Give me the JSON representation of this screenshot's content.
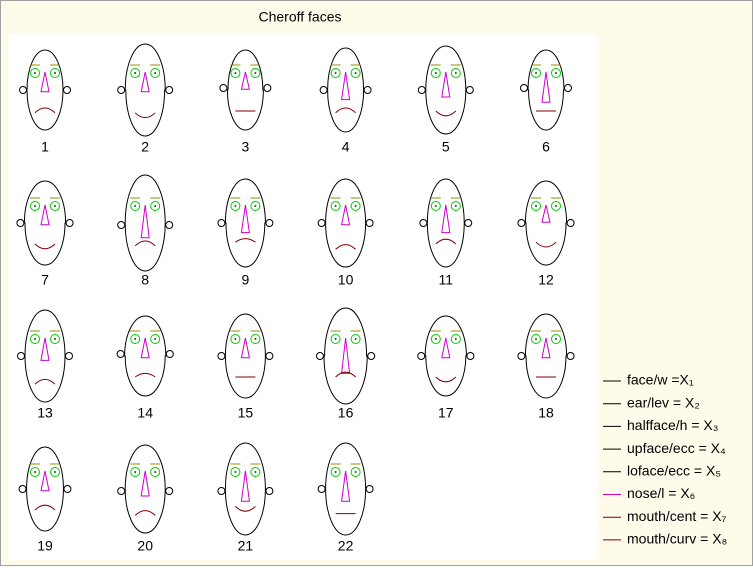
{
  "chart_data": {
    "type": "chernoff",
    "title": "Cheroff faces",
    "categories": [
      "1",
      "2",
      "3",
      "4",
      "5",
      "6",
      "7",
      "8",
      "9",
      "10",
      "11",
      "12",
      "13",
      "14",
      "15",
      "16",
      "17",
      "18",
      "19",
      "20",
      "21",
      "22"
    ],
    "series": [
      {
        "name": "face/w =X₁",
        "color": "#000000",
        "values": [
          0.4,
          0.6,
          0.4,
          0.4,
          0.6,
          0.4,
          0.6,
          0.6,
          0.6,
          0.6,
          0.5,
          0.6,
          0.6,
          0.6,
          0.6,
          0.7,
          0.6,
          0.6,
          0.5,
          0.6,
          0.6,
          0.6
        ]
      },
      {
        "name": "ear/lev = X₂",
        "color": "#000000",
        "values": [
          0.5,
          0.5,
          0.4,
          0.5,
          0.5,
          0.4,
          0.5,
          0.6,
          0.5,
          0.5,
          0.5,
          0.5,
          0.5,
          0.4,
          0.5,
          0.5,
          0.5,
          0.5,
          0.5,
          0.6,
          0.6,
          0.5
        ]
      },
      {
        "name": "halfface/h = X₃",
        "color": "#000000",
        "values": [
          0.4,
          0.7,
          0.4,
          0.5,
          0.6,
          0.4,
          0.5,
          0.8,
          0.6,
          0.6,
          0.6,
          0.5,
          0.7,
          0.4,
          0.5,
          0.8,
          0.4,
          0.5,
          0.5,
          0.6,
          0.7,
          0.7
        ]
      },
      {
        "name": "upface/ecc = X₄",
        "color": "#000000",
        "values": [
          0.5,
          0.5,
          0.4,
          0.5,
          0.5,
          0.5,
          0.6,
          0.5,
          0.5,
          0.5,
          0.4,
          0.6,
          0.5,
          0.6,
          0.5,
          0.5,
          0.6,
          0.6,
          0.4,
          0.5,
          0.5,
          0.5
        ]
      },
      {
        "name": "loface/ecc = X₅",
        "color": "#000000",
        "values": [
          0.5,
          0.4,
          0.5,
          0.5,
          0.5,
          0.4,
          0.5,
          0.5,
          0.4,
          0.5,
          0.4,
          0.5,
          0.5,
          0.5,
          0.5,
          0.6,
          0.5,
          0.5,
          0.4,
          0.5,
          0.5,
          0.5
        ]
      },
      {
        "name": "nose/l = X₆",
        "color": "#cc00cc",
        "values": [
          0.3,
          0.3,
          0.2,
          0.6,
          0.5,
          0.7,
          0.3,
          0.8,
          0.6,
          0.3,
          0.6,
          0.2,
          0.4,
          0.3,
          0.3,
          0.9,
          0.3,
          0.3,
          0.3,
          0.5,
          0.7,
          0.7
        ]
      },
      {
        "name": "mouth/cent = X₇",
        "color": "#800000",
        "values": [
          0.6,
          0.6,
          0.5,
          0.6,
          0.5,
          0.5,
          0.5,
          0.6,
          0.4,
          0.8,
          0.5,
          0.4,
          0.9,
          0.5,
          0.5,
          0.5,
          0.5,
          0.5,
          0.5,
          0.8,
          0.3,
          0.7
        ]
      },
      {
        "name": "mouth/curv = X₈",
        "color": "#800000",
        "values": [
          0.1,
          0.9,
          0.5,
          0.1,
          0.9,
          0.5,
          0.9,
          0.1,
          0.2,
          0.1,
          0.1,
          0.9,
          0.1,
          0.2,
          0.5,
          0.1,
          0.9,
          0.5,
          0.1,
          0.1,
          0.9,
          0.5
        ]
      }
    ]
  }
}
